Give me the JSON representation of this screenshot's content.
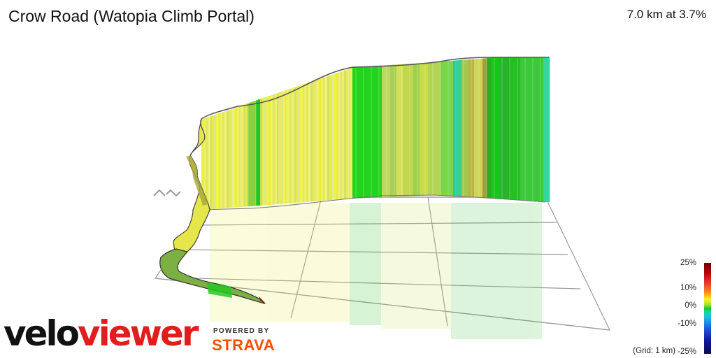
{
  "header": {
    "title": "Crow Road (Watopia Climb Portal)",
    "stats": "7.0 km at 3.7%"
  },
  "legend": {
    "labels": [
      "25%",
      "10%",
      "0%",
      "-10%",
      "-25%"
    ],
    "grid_note": "(Grid: 1 km)"
  },
  "branding": {
    "velo": "velo",
    "viewer": "viewer",
    "powered_by": "POWERED BY",
    "strava": "STRAVA"
  },
  "colors": {
    "veloviewer_red": "#e01e1e",
    "strava_orange": "#fc4c02",
    "wall_yellow": "#e8ee3a",
    "wall_green": "#22c81e"
  },
  "icons": [
    "rotate-arrows-icon"
  ]
}
